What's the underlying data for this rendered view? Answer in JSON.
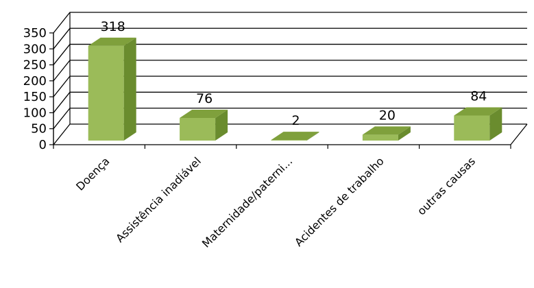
{
  "chart_data": {
    "type": "bar",
    "style": "3d-column",
    "categories": [
      "Doença",
      "Assistência inadiável",
      "Maternidade/paterni...",
      "Acidentes de trabalho",
      "outras causas"
    ],
    "values": [
      318,
      76,
      2,
      20,
      84
    ],
    "data_labels": [
      "318",
      "76",
      "2",
      "20",
      "84"
    ],
    "ylim": [
      0,
      350
    ],
    "yticks": [
      "0",
      "50",
      "100",
      "150",
      "200",
      "250",
      "300",
      "350"
    ],
    "grid": true,
    "legend": "none",
    "title": "",
    "xlabel": "",
    "ylabel": "",
    "colors": {
      "front": "#9bbb59",
      "side": "#6a8c2e",
      "top": "#7fa03c",
      "grid": "#000000"
    }
  }
}
